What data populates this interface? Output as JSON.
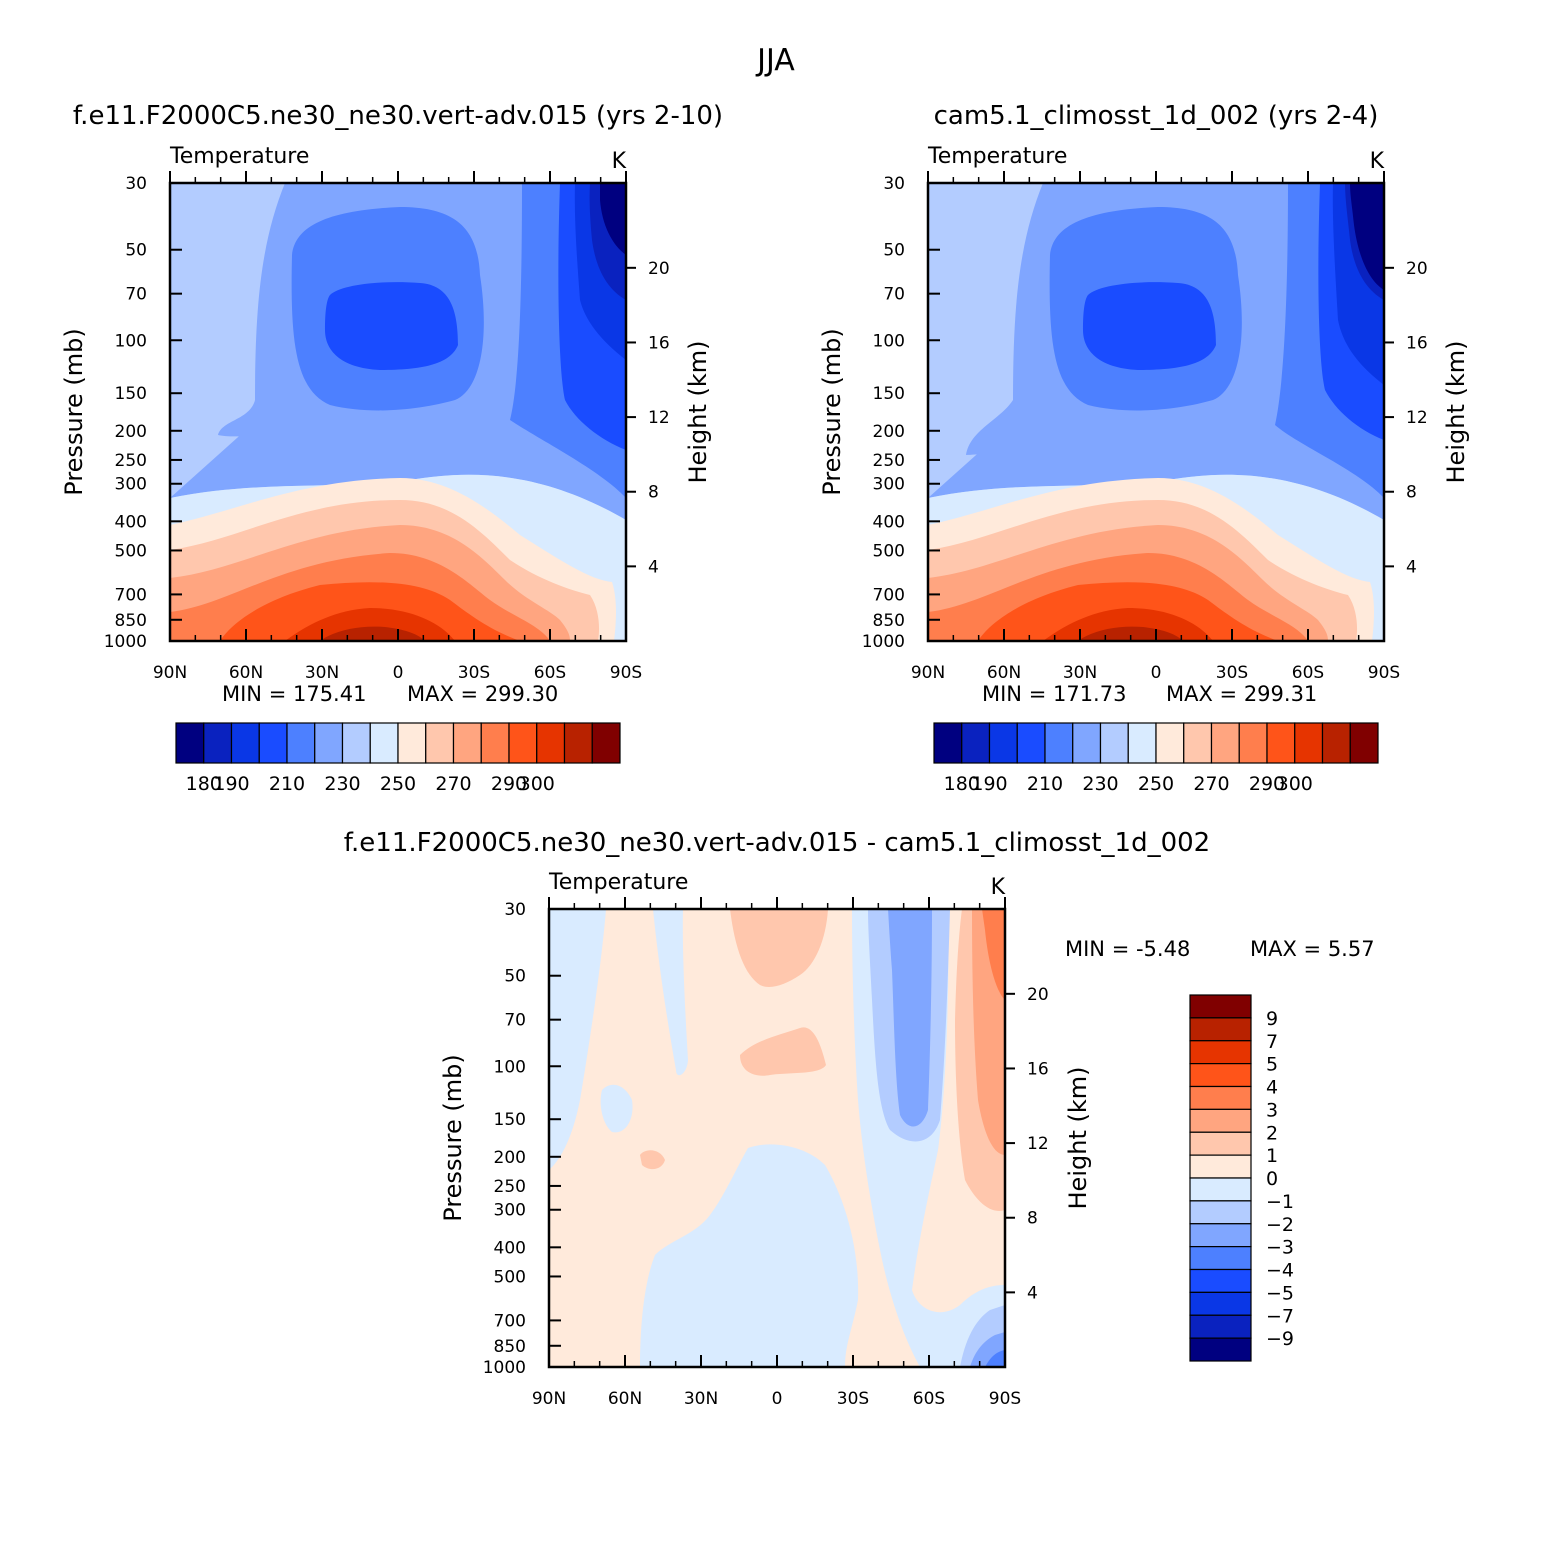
{
  "figure": {
    "title": "JJA"
  },
  "chart_data": [
    {
      "type": "contour",
      "title": "f.e11.F2000C5.ne30_ne30.vert-adv.015 (yrs 2-10)",
      "variable_label": "Temperature",
      "units": "K",
      "xlabel": "",
      "ylabel": "Pressure (mb)",
      "ylabel_right": "Height (km)",
      "x_ticks": [
        "90N",
        "60N",
        "30N",
        "0",
        "30S",
        "60S",
        "90S"
      ],
      "x_range": [
        90,
        -90
      ],
      "y_ticks": [
        30,
        50,
        70,
        100,
        150,
        200,
        250,
        300,
        400,
        500,
        700,
        850,
        1000
      ],
      "y_range": [
        30,
        1000
      ],
      "y_scale": "log",
      "right_ticks": [
        4,
        8,
        12,
        16,
        20
      ],
      "min_text": "MIN = 175.41",
      "max_text": "MAX = 299.30",
      "min": 175.41,
      "max": 299.3,
      "levels": [
        180,
        190,
        200,
        210,
        220,
        230,
        240,
        250,
        260,
        270,
        280,
        290,
        300
      ],
      "colorbar_labels": [
        "180",
        "190",
        "210",
        "230",
        "250",
        "270",
        "290",
        "300"
      ],
      "colors": [
        "#000080",
        "#0a22bf",
        "#0a37e6",
        "#1a4cff",
        "#4d80ff",
        "#80a6ff",
        "#b3ccff",
        "#d9ebff",
        "#ffeadb",
        "#ffc7ad",
        "#ffa580",
        "#ff7e4d",
        "#ff5419",
        "#e63400",
        "#b82200",
        "#800000"
      ]
    },
    {
      "type": "contour",
      "title": "cam5.1_climosst_1d_002 (yrs 2-4)",
      "variable_label": "Temperature",
      "units": "K",
      "xlabel": "",
      "ylabel": "Pressure (mb)",
      "ylabel_right": "Height (km)",
      "x_ticks": [
        "90N",
        "60N",
        "30N",
        "0",
        "30S",
        "60S",
        "90S"
      ],
      "x_range": [
        90,
        -90
      ],
      "y_ticks": [
        30,
        50,
        70,
        100,
        150,
        200,
        250,
        300,
        400,
        500,
        700,
        850,
        1000
      ],
      "y_range": [
        30,
        1000
      ],
      "y_scale": "log",
      "right_ticks": [
        4,
        8,
        12,
        16,
        20
      ],
      "min_text": "MIN = 171.73",
      "max_text": "MAX = 299.31",
      "min": 171.73,
      "max": 299.31,
      "levels": [
        180,
        190,
        200,
        210,
        220,
        230,
        240,
        250,
        260,
        270,
        280,
        290,
        300
      ],
      "colorbar_labels": [
        "180",
        "190",
        "210",
        "230",
        "250",
        "270",
        "290",
        "300"
      ],
      "colors": [
        "#000080",
        "#0a22bf",
        "#0a37e6",
        "#1a4cff",
        "#4d80ff",
        "#80a6ff",
        "#b3ccff",
        "#d9ebff",
        "#ffeadb",
        "#ffc7ad",
        "#ffa580",
        "#ff7e4d",
        "#ff5419",
        "#e63400",
        "#b82200",
        "#800000"
      ]
    },
    {
      "type": "contour",
      "title": "f.e11.F2000C5.ne30_ne30.vert-adv.015 - cam5.1_climosst_1d_002",
      "variable_label": "Temperature",
      "units": "K",
      "xlabel": "",
      "ylabel": "Pressure (mb)",
      "ylabel_right": "Height (km)",
      "x_ticks": [
        "90N",
        "60N",
        "30N",
        "0",
        "30S",
        "60S",
        "90S"
      ],
      "x_range": [
        90,
        -90
      ],
      "y_ticks": [
        30,
        50,
        70,
        100,
        150,
        200,
        250,
        300,
        400,
        500,
        700,
        850,
        1000
      ],
      "y_range": [
        30,
        1000
      ],
      "y_scale": "log",
      "right_ticks": [
        4,
        8,
        12,
        16,
        20
      ],
      "min_text": "MIN = -5.48",
      "max_text": "MAX = 5.57",
      "min": -5.48,
      "max": 5.57,
      "levels": [
        -9,
        -7,
        -5,
        -4,
        -3,
        -2,
        -1,
        0,
        1,
        2,
        3,
        4,
        5,
        7,
        9
      ],
      "colorbar_labels": [
        "9",
        "7",
        "5",
        "4",
        "3",
        "2",
        "1",
        "0",
        "−1",
        "−2",
        "−3",
        "−4",
        "−5",
        "−7",
        "−9"
      ],
      "colors": [
        "#800000",
        "#b82200",
        "#e63400",
        "#ff5419",
        "#ff7e4d",
        "#ffa580",
        "#ffc7ad",
        "#ffeadb",
        "#d9ebff",
        "#b3ccff",
        "#80a6ff",
        "#4d80ff",
        "#1a4cff",
        "#0a37e6",
        "#0a22bf",
        "#000080"
      ]
    }
  ]
}
